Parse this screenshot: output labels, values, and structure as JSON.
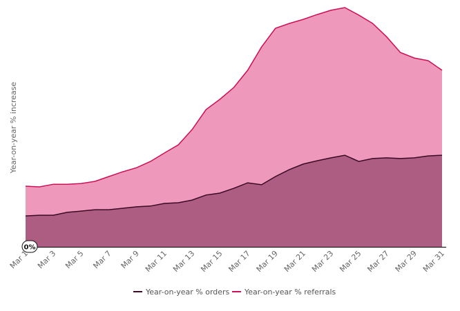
{
  "chart_data": {
    "type": "area",
    "title": "",
    "xlabel": "",
    "ylabel": "Year-on-year % increase",
    "baseline_label": "0%",
    "ylim": [
      0,
      100
    ],
    "grid": false,
    "legend_placement": "bottom",
    "x": [
      "Mar 1",
      "Mar 2",
      "Mar 3",
      "Mar 4",
      "Mar 5",
      "Mar 6",
      "Mar 7",
      "Mar 8",
      "Mar 9",
      "Mar 10",
      "Mar 11",
      "Mar 12",
      "Mar 13",
      "Mar 14",
      "Mar 15",
      "Mar 16",
      "Mar 17",
      "Mar 18",
      "Mar 19",
      "Mar 20",
      "Mar 21",
      "Mar 22",
      "Mar 23",
      "Mar 24",
      "Mar 25",
      "Mar 26",
      "Mar 27",
      "Mar 28",
      "Mar 29",
      "Mar 30",
      "Mar 31"
    ],
    "tick_labels": [
      "Mar 1",
      "Mar 3",
      "Mar 5",
      "Mar 7",
      "Mar 9",
      "Mar 11",
      "Mar 13",
      "Mar 15",
      "Mar 17",
      "Mar 19",
      "Mar 21",
      "Mar 23",
      "Mar 25",
      "Mar 27",
      "Mar 29",
      "Mar 31"
    ],
    "series": [
      {
        "name": "Year-on-year % referrals",
        "line_color": "#cc0f55",
        "fill_color": "#ee99bb",
        "values": [
          25.3,
          25.0,
          26.1,
          26.1,
          26.4,
          27.3,
          29.3,
          31.3,
          33.0,
          35.6,
          39.1,
          42.5,
          48.9,
          57.2,
          61.5,
          66.4,
          73.6,
          83.3,
          91.1,
          93.1,
          94.8,
          96.8,
          98.6,
          99.7,
          96.6,
          93.1,
          87.6,
          81.0,
          78.7,
          77.6,
          73.6
        ]
      },
      {
        "name": "Year-on-year % orders",
        "line_color": "#3a0a25",
        "fill_color": "#ad5c82",
        "values": [
          12.9,
          13.2,
          13.2,
          14.4,
          14.9,
          15.5,
          15.5,
          16.1,
          16.7,
          17.0,
          18.1,
          18.4,
          19.5,
          21.6,
          22.4,
          24.4,
          26.7,
          25.9,
          29.3,
          32.2,
          34.5,
          35.9,
          37.1,
          38.2,
          35.6,
          36.8,
          37.1,
          36.8,
          37.1,
          37.9,
          38.2
        ]
      }
    ],
    "legend": [
      "Year-on-year % orders",
      "Year-on-year % referrals"
    ]
  }
}
